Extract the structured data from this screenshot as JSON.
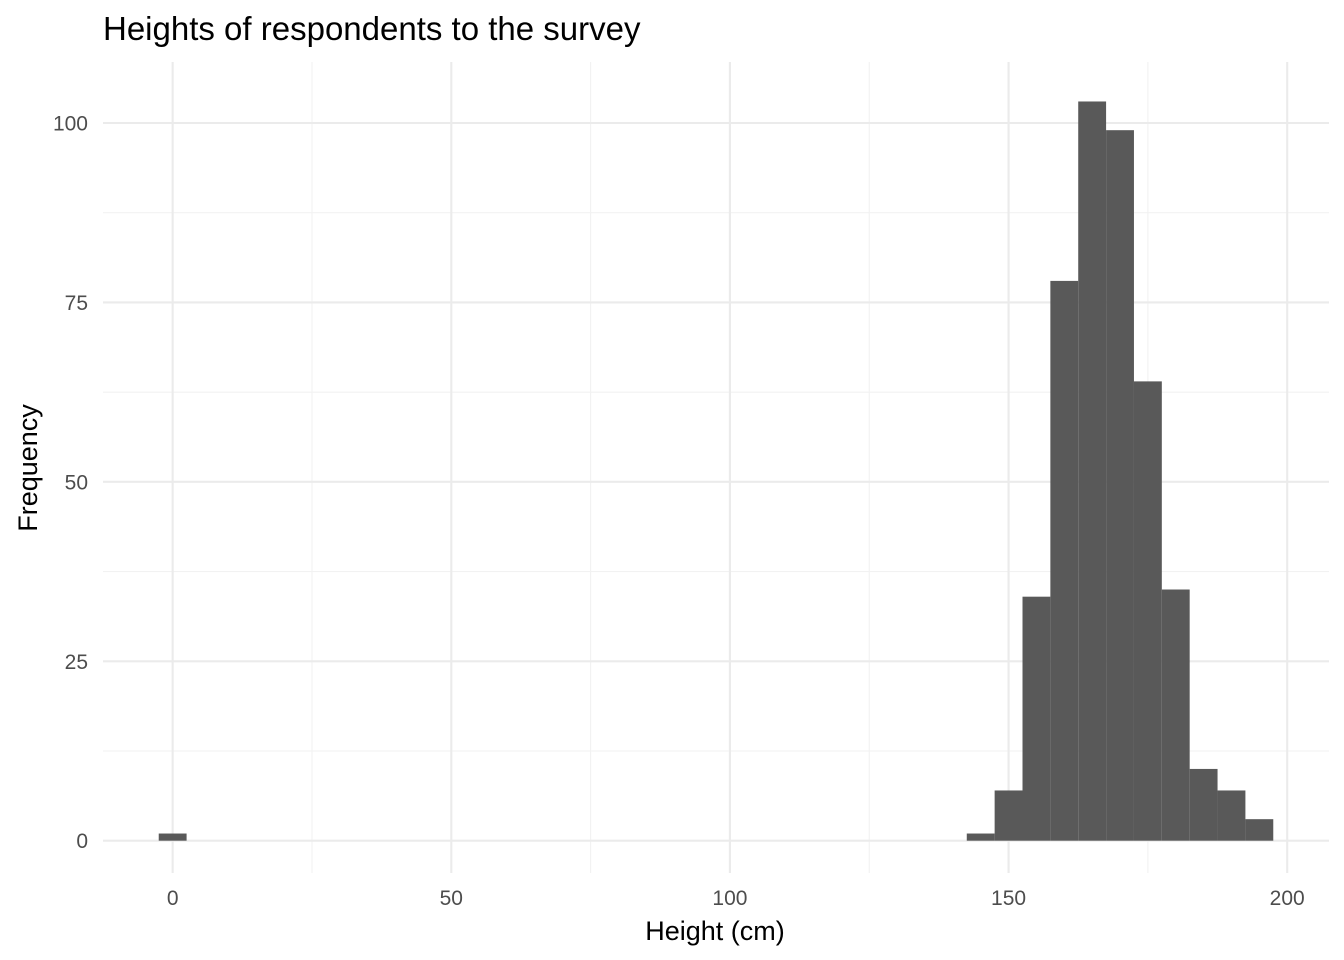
{
  "chart_data": {
    "type": "bar",
    "subtype": "histogram",
    "title": "Heights of respondents to the survey",
    "xlabel": "Height (cm)",
    "ylabel": "Frequency",
    "xlim": [
      -12.5,
      207.5
    ],
    "ylim": [
      -4.5,
      108.5
    ],
    "x_ticks": [
      0,
      50,
      100,
      150,
      200
    ],
    "y_ticks": [
      0,
      25,
      50,
      75,
      100
    ],
    "grid": true,
    "legend": "none",
    "bin_width": 5,
    "bins": [
      {
        "x_start": -2.5,
        "x_end": 2.5,
        "count": 1
      },
      {
        "x_start": 142.5,
        "x_end": 147.5,
        "count": 1
      },
      {
        "x_start": 147.5,
        "x_end": 152.5,
        "count": 7
      },
      {
        "x_start": 152.5,
        "x_end": 157.5,
        "count": 34
      },
      {
        "x_start": 157.5,
        "x_end": 162.5,
        "count": 78
      },
      {
        "x_start": 162.5,
        "x_end": 167.5,
        "count": 103
      },
      {
        "x_start": 167.5,
        "x_end": 172.5,
        "count": 99
      },
      {
        "x_start": 172.5,
        "x_end": 177.5,
        "count": 64
      },
      {
        "x_start": 177.5,
        "x_end": 182.5,
        "count": 35
      },
      {
        "x_start": 182.5,
        "x_end": 187.5,
        "count": 10
      },
      {
        "x_start": 187.5,
        "x_end": 192.5,
        "count": 7
      },
      {
        "x_start": 192.5,
        "x_end": 197.5,
        "count": 3
      }
    ],
    "colors": {
      "bar_fill": "#595959",
      "grid_major": "#ebebeb",
      "grid_minor": "#f2f2f2",
      "tick_text": "#4d4d4d",
      "title_text": "#000000"
    }
  }
}
